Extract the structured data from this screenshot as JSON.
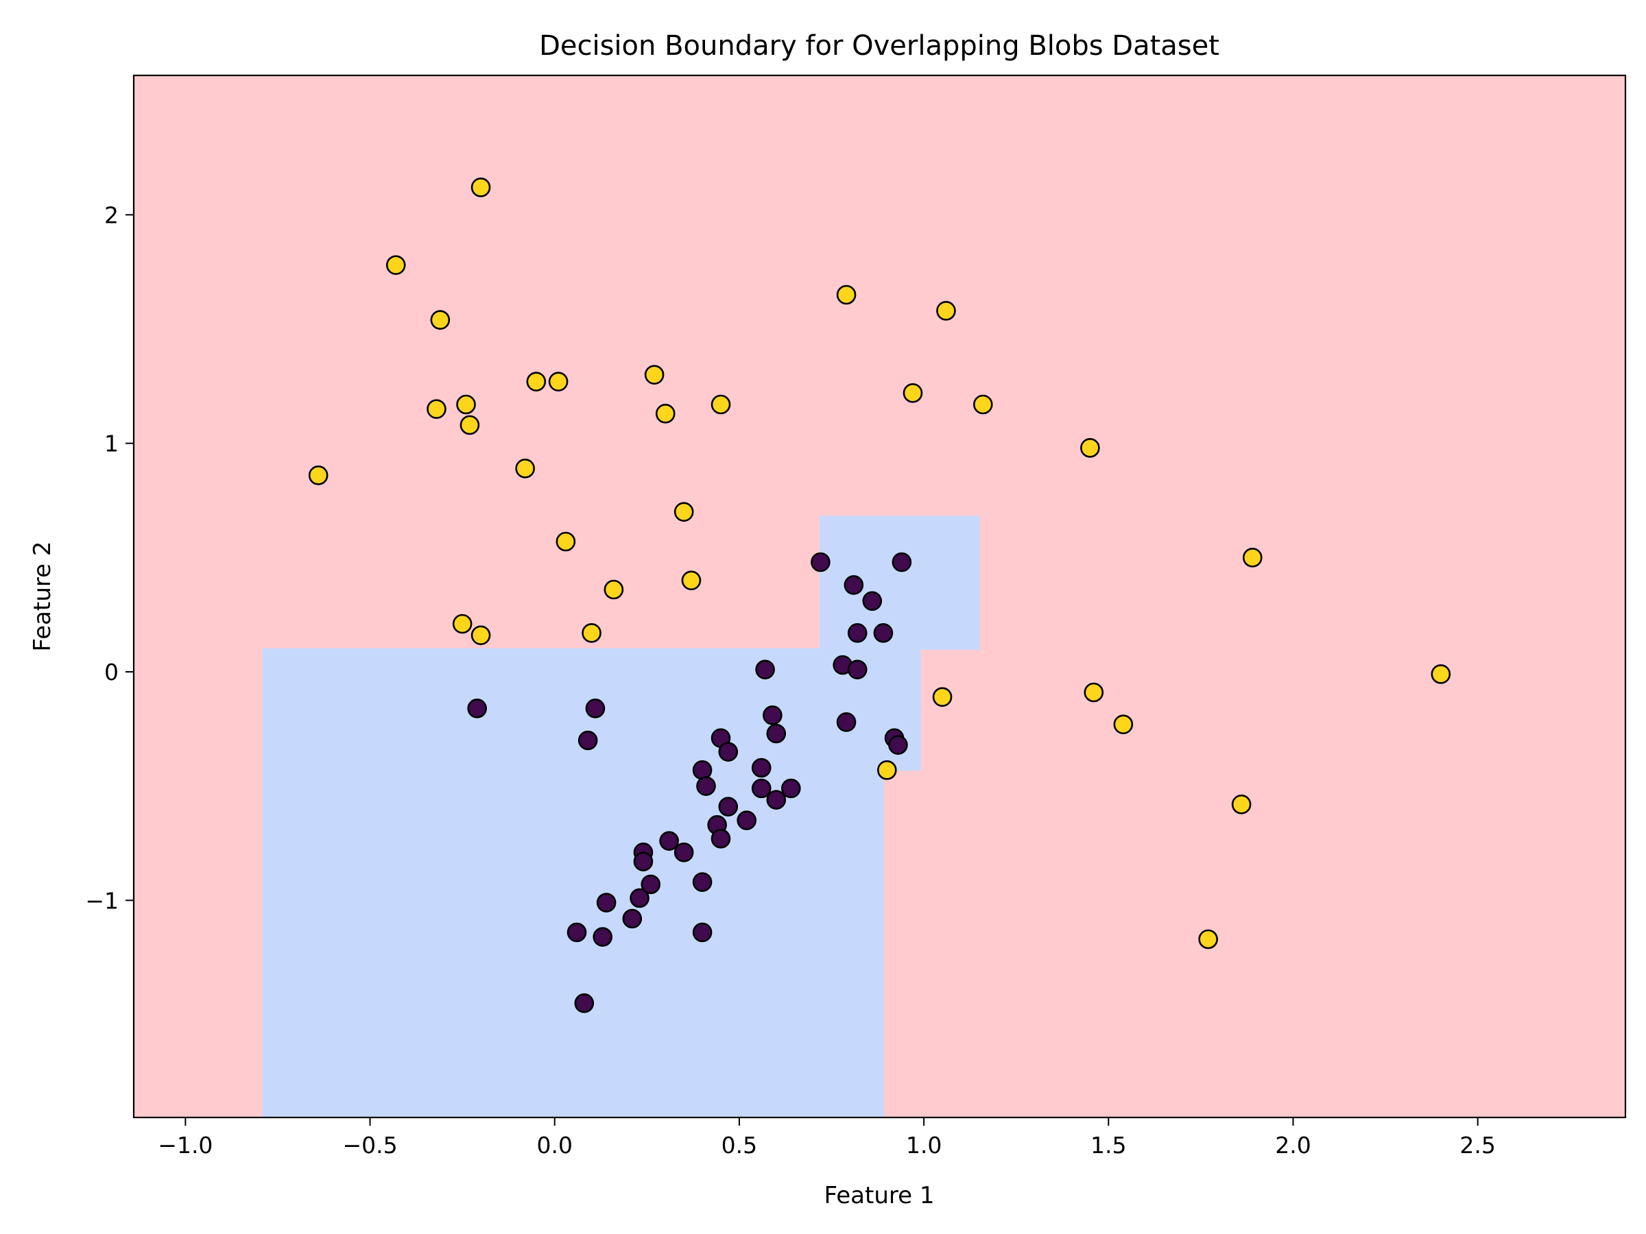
{
  "chart_data": {
    "type": "scatter",
    "title": "Decision Boundary for Overlapping Blobs Dataset",
    "xlabel": "Feature 1",
    "ylabel": "Feature 2",
    "xlim": [
      -1.14,
      2.9
    ],
    "ylim": [
      -1.95,
      2.61
    ],
    "xticks": [
      -1.0,
      -0.5,
      0.0,
      0.5,
      1.0,
      1.5,
      2.0,
      2.5
    ],
    "xtick_labels": [
      "−1.0",
      "−0.5",
      "0.0",
      "0.5",
      "1.0",
      "1.5",
      "2.0",
      "2.5"
    ],
    "yticks": [
      -1,
      0,
      1,
      2
    ],
    "ytick_labels": [
      "−1",
      "0",
      "1",
      "2"
    ],
    "grid": false,
    "colors": {
      "region_class_0": "#c6d9fd",
      "region_class_1": "#ffcbcf",
      "class_0": "#400a4c",
      "class_1": "#fdd51b",
      "edge": "#000000"
    },
    "region_class_0_polygon": [
      [
        -0.79,
        -1.95
      ],
      [
        -0.79,
        0.1
      ],
      [
        0.72,
        0.1
      ],
      [
        0.72,
        0.68
      ],
      [
        1.15,
        0.68
      ],
      [
        1.15,
        0.1
      ],
      [
        0.99,
        0.1
      ],
      [
        0.99,
        -0.43
      ],
      [
        0.89,
        -0.43
      ],
      [
        0.89,
        -1.95
      ]
    ],
    "series": [
      {
        "class": 0,
        "points": [
          [
            -0.21,
            -0.16
          ],
          [
            0.09,
            -0.3
          ],
          [
            0.11,
            -0.16
          ],
          [
            0.06,
            -1.14
          ],
          [
            0.08,
            -1.45
          ],
          [
            0.13,
            -1.16
          ],
          [
            0.14,
            -1.01
          ],
          [
            0.21,
            -1.08
          ],
          [
            0.23,
            -0.99
          ],
          [
            0.24,
            -0.79
          ],
          [
            0.24,
            -0.83
          ],
          [
            0.26,
            -0.93
          ],
          [
            0.31,
            -0.74
          ],
          [
            0.35,
            -0.79
          ],
          [
            0.4,
            -0.92
          ],
          [
            0.4,
            -1.14
          ],
          [
            0.4,
            -0.43
          ],
          [
            0.41,
            -0.5
          ],
          [
            0.44,
            -0.67
          ],
          [
            0.45,
            -0.73
          ],
          [
            0.45,
            -0.29
          ],
          [
            0.47,
            -0.35
          ],
          [
            0.47,
            -0.59
          ],
          [
            0.52,
            -0.65
          ],
          [
            0.56,
            -0.51
          ],
          [
            0.56,
            -0.42
          ],
          [
            0.57,
            0.01
          ],
          [
            0.59,
            -0.19
          ],
          [
            0.6,
            -0.56
          ],
          [
            0.6,
            -0.27
          ],
          [
            0.64,
            -0.51
          ],
          [
            0.72,
            0.48
          ],
          [
            0.78,
            0.03
          ],
          [
            0.79,
            -0.22
          ],
          [
            0.81,
            0.38
          ],
          [
            0.82,
            0.17
          ],
          [
            0.82,
            0.01
          ],
          [
            0.86,
            0.31
          ],
          [
            0.89,
            0.17
          ],
          [
            0.92,
            -0.29
          ],
          [
            0.93,
            -0.32
          ],
          [
            0.94,
            0.48
          ]
        ]
      },
      {
        "class": 1,
        "points": [
          [
            -0.64,
            0.86
          ],
          [
            -0.43,
            1.78
          ],
          [
            -0.31,
            1.54
          ],
          [
            -0.32,
            1.15
          ],
          [
            -0.24,
            1.17
          ],
          [
            -0.23,
            1.08
          ],
          [
            -0.2,
            2.12
          ],
          [
            -0.05,
            1.27
          ],
          [
            0.01,
            1.27
          ],
          [
            -0.08,
            0.89
          ],
          [
            0.03,
            0.57
          ],
          [
            0.27,
            1.3
          ],
          [
            0.3,
            1.13
          ],
          [
            0.45,
            1.17
          ],
          [
            0.35,
            0.7
          ],
          [
            0.37,
            0.4
          ],
          [
            0.16,
            0.36
          ],
          [
            0.1,
            0.17
          ],
          [
            -0.25,
            0.21
          ],
          [
            -0.2,
            0.16
          ],
          [
            0.79,
            1.65
          ],
          [
            1.06,
            1.58
          ],
          [
            0.97,
            1.22
          ],
          [
            1.16,
            1.17
          ],
          [
            1.45,
            0.98
          ],
          [
            1.89,
            0.5
          ],
          [
            1.05,
            -0.11
          ],
          [
            0.9,
            -0.43
          ],
          [
            1.46,
            -0.09
          ],
          [
            1.54,
            -0.23
          ],
          [
            2.4,
            -0.01
          ],
          [
            1.86,
            -0.58
          ],
          [
            1.77,
            -1.17
          ]
        ]
      }
    ]
  }
}
